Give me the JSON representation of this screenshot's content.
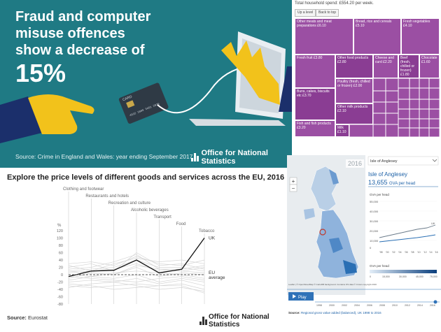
{
  "fraud": {
    "headline": "Fraud and computer misuse offences show a decrease of",
    "percent": "15%",
    "source": "Source: Crime in England and Wales: year ending September 2017",
    "card_text": "CARD",
    "logo_text": "Office for National Statistics",
    "colors": {
      "background": "#1f7a84",
      "hand": "#f2c21b",
      "sleeve": "#1b2f6b"
    }
  },
  "treemap": {
    "caption": "Total household spend: £554.20 per week.",
    "buttons": [
      "Up a level",
      "Back to top"
    ],
    "tiles": [
      {
        "label": "Other meats and meat preparations £6.10"
      },
      {
        "label": "Bread, rice and cereals £5.10"
      },
      {
        "label": "Fresh vegetables £4.10"
      },
      {
        "label": "Fresh fruit £3.80"
      },
      {
        "label": "Other food products £2.80"
      },
      {
        "label": "Cheese and curd £2.20"
      },
      {
        "label": "Beef (fresh, chilled or frozen) £1.80"
      },
      {
        "label": "Chocolate £1.60"
      },
      {
        "label": "Buns, cakes, biscuits etc £3.70"
      },
      {
        "label": "Poultry (fresh, chilled or frozen) £2.00"
      },
      {
        "label": "Other milk products £2.10"
      },
      {
        "label": "Fish and fish products £3.20"
      },
      {
        "label": "Milk £1.10"
      }
    ],
    "color": "#9b4fa3"
  },
  "eu_chart": {
    "title": "Explore the price levels of different goods and services across the EU, 2016",
    "source_label": "Source:",
    "source_value": "Eurostat",
    "logo_text": "Office for National Statistics",
    "ylabel": "%",
    "uk_label": "UK",
    "eu_label": "EU",
    "eu_sublabel": "average"
  },
  "chart_data": {
    "type": "line",
    "categories": [
      "Clothing and footwear",
      "Restaurants and hotels",
      "Recreation and culture",
      "Alcoholic beverages",
      "Transport",
      "Food",
      "Tobacco"
    ],
    "ylim": [
      -80,
      120
    ],
    "yticks": [
      120,
      100,
      80,
      60,
      40,
      20,
      0,
      -20,
      -40,
      -60,
      -80
    ],
    "series": [
      {
        "name": "UK",
        "values": [
          -5,
          10,
          12,
          40,
          5,
          15,
          100
        ]
      },
      {
        "name": "EU average",
        "values": [
          0,
          0,
          0,
          0,
          0,
          0,
          0
        ]
      }
    ],
    "grid": false,
    "legend": "inline-right"
  },
  "map": {
    "year_badge": "2016",
    "search_value": "Isle of Anglesey",
    "region_name": "Isle of Anglesey",
    "region_value": "13,655",
    "region_unit": "GVA per head",
    "chart_label": "GVA per head",
    "y_ticks": [
      "55,000",
      "40,000",
      "30,000",
      "20,000",
      "10,000",
      "0"
    ],
    "x_ticks": [
      "'98",
      "'00",
      "'02",
      "'04",
      "'06",
      "'08",
      "'10",
      "'12",
      "'14",
      "'16"
    ],
    "uk_tag": "UK",
    "legend_label": "GVA per head",
    "legend_ticks": [
      "0",
      "15,000",
      "30,000",
      "45,000",
      "75,000"
    ],
    "attribution": "Leaflet | © OpenStreetMap © CartoDB background. Contains OS data © Crown copyright 2016",
    "play_label": "Play",
    "timeline": [
      "1998",
      "2000",
      "2002",
      "2004",
      "2006",
      "2008",
      "2010",
      "2012",
      "2014",
      "2016"
    ],
    "footer_source": "Source:",
    "footer_text": "Regional gross value added (balanced), UK 1998 to 2016",
    "zoom_in": "+",
    "zoom_out": "−",
    "colors": {
      "map_blue": "#2a6fb4",
      "link_blue": "#2063a8",
      "play_bg": "#2f72b8"
    }
  }
}
